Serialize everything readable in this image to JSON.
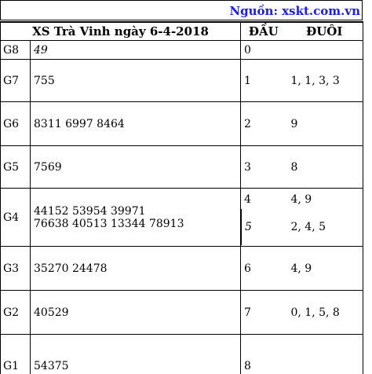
{
  "source": {
    "label": "Nguồn: xskt.com.vn"
  },
  "header": {
    "title": "XS Trà Vinh ngày 6-4-2018",
    "dau_label": "ĐẦU",
    "duoi_label": "ĐUÔI"
  },
  "prizes": [
    {
      "label": "G8",
      "values": [
        "49"
      ]
    },
    {
      "label": "G7",
      "values": [
        "755"
      ]
    },
    {
      "label": "G6",
      "values": [
        "8311 6997 8464"
      ]
    },
    {
      "label": "G5",
      "values": [
        "7569"
      ]
    },
    {
      "label": "G4",
      "values": [
        "44152 53954 39971",
        "76638 40513 13344 78913"
      ]
    },
    {
      "label": "G3",
      "values": [
        "35270 24478"
      ]
    },
    {
      "label": "G2",
      "values": [
        "40529"
      ]
    },
    {
      "label": "G1",
      "values": [
        "54375"
      ]
    }
  ],
  "dau_duoi": [
    {
      "dau": "0",
      "duoi": ""
    },
    {
      "dau": "1",
      "duoi": "1, 1, 3, 3"
    },
    {
      "dau": "2",
      "duoi": "9"
    },
    {
      "dau": "3",
      "duoi": "8"
    },
    {
      "dau": "4",
      "duoi": "4, 9"
    },
    {
      "dau": "5",
      "duoi": "2, 4, 5"
    },
    {
      "dau": "6",
      "duoi": "4, 9"
    },
    {
      "dau": "7",
      "duoi": "0, 1, 5, 8"
    },
    {
      "dau": "8",
      "duoi": ""
    }
  ]
}
